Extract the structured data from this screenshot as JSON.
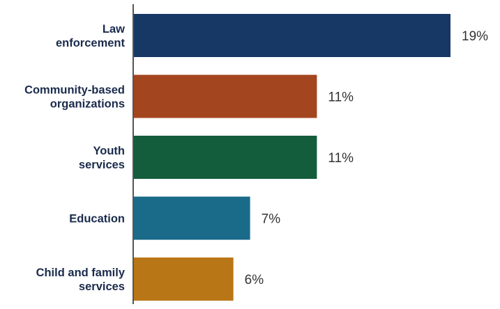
{
  "chart_data": {
    "type": "bar",
    "orientation": "horizontal",
    "categories": [
      [
        "Law",
        "enforcement"
      ],
      [
        "Community-based",
        "organizations"
      ],
      [
        "Youth",
        "services"
      ],
      [
        "Education"
      ],
      [
        "Child and family",
        "services"
      ]
    ],
    "values": [
      19,
      11,
      11,
      7,
      6
    ],
    "value_labels": [
      "19%",
      "11%",
      "11%",
      "7%",
      "6%"
    ],
    "colors": [
      "#173764",
      "#a3451f",
      "#135c3c",
      "#1a6a8a",
      "#b97617"
    ],
    "axis_color": "#555555",
    "title": "",
    "xlabel": "",
    "ylabel": "",
    "xlim": [
      0,
      19
    ],
    "grid": false,
    "legend": "none"
  }
}
